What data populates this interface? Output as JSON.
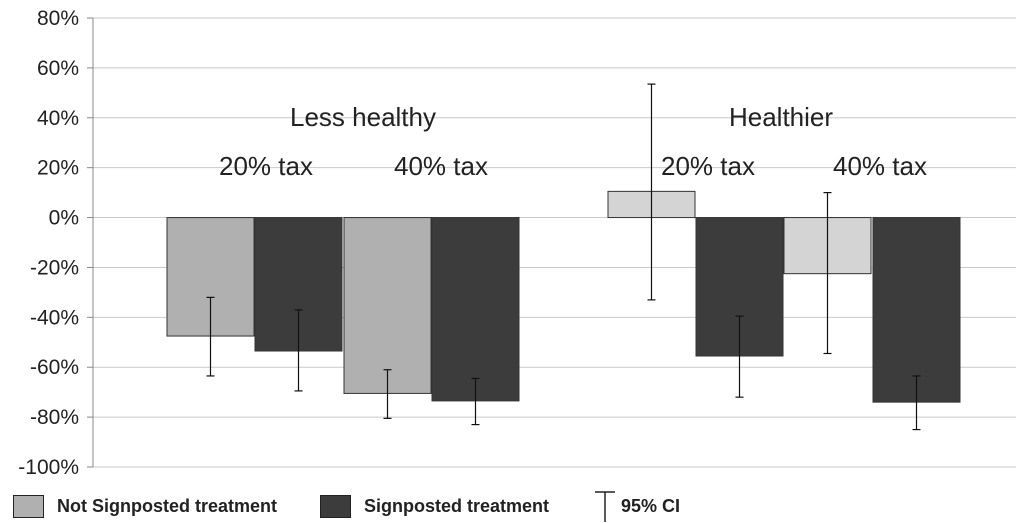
{
  "chart_data": {
    "type": "bar",
    "ylim": [
      -100,
      80
    ],
    "yticks": [
      "80%",
      "60%",
      "40%",
      "20%",
      "0%",
      "-20%",
      "-40%",
      "-60%",
      "-80%",
      "-100%"
    ],
    "ytick_values": [
      80,
      60,
      40,
      20,
      0,
      -20,
      -40,
      -60,
      -80,
      -100
    ],
    "grid": true,
    "groups": [
      {
        "label": "Less healthy",
        "subgroups": [
          {
            "label": "20% tax",
            "bars": [
              {
                "series": "Not Signposted treatment",
                "value": -47.5,
                "ci": [
                  -63.5,
                  -32
                ]
              },
              {
                "series": "Signposted treatment",
                "value": -53.5,
                "ci": [
                  -69.5,
                  -37
                ]
              }
            ]
          },
          {
            "label": "40% tax",
            "bars": [
              {
                "series": "Not Signposted treatment",
                "value": -70.5,
                "ci": [
                  -80.5,
                  -61
                ]
              },
              {
                "series": "Signposted treatment",
                "value": -73.5,
                "ci": [
                  -83,
                  -64.5
                ]
              }
            ]
          }
        ]
      },
      {
        "label": "Healthier",
        "subgroups": [
          {
            "label": "20% tax",
            "bars": [
              {
                "series": "Not Signposted treatment",
                "value": 10.5,
                "ci": [
                  -33,
                  53.5
                ]
              },
              {
                "series": "Signposted treatment",
                "value": -55.5,
                "ci": [
                  -72,
                  -39.5
                ]
              }
            ]
          },
          {
            "label": "40% tax",
            "bars": [
              {
                "series": "Not Signposted treatment",
                "value": -22.5,
                "ci": [
                  -54.5,
                  10
                ]
              },
              {
                "series": "Signposted treatment",
                "value": -74,
                "ci": [
                  -85,
                  -63.5
                ]
              }
            ]
          }
        ]
      }
    ],
    "series_colors": {
      "less_healthy_not_signposted": "#b0b0b0",
      "healthier_not_signposted": "#d4d4d4",
      "signposted": "#3c3c3c"
    }
  },
  "legend": {
    "not_signposted_label": "Not Signposted treatment",
    "not_signposted_color": "#b0b0b0",
    "signposted_label": "Signposted treatment",
    "signposted_color": "#3c3c3c",
    "ci_label": "95% CI"
  }
}
